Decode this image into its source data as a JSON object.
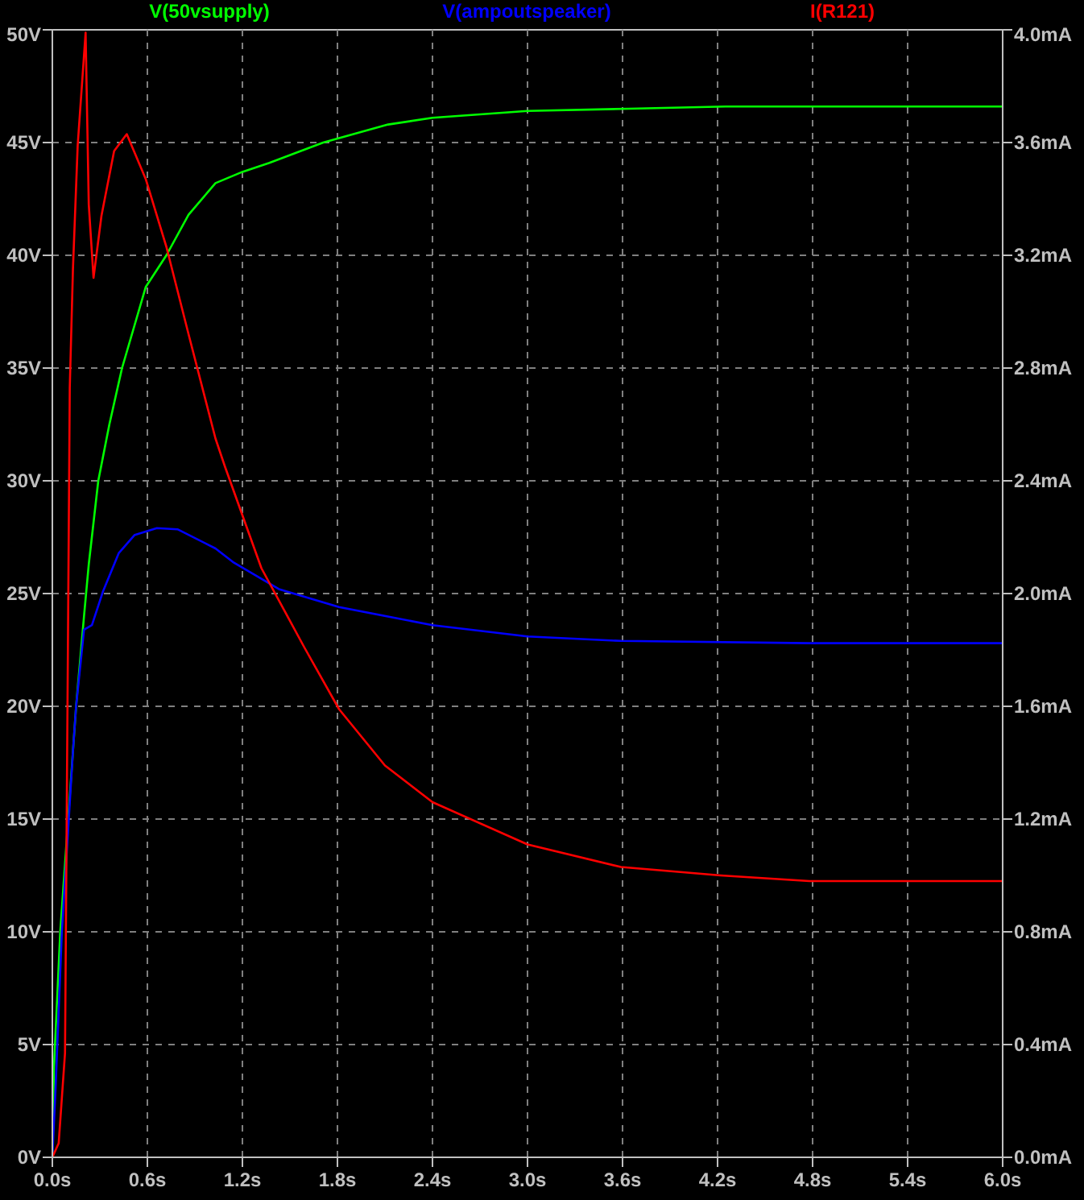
{
  "chart_data": {
    "type": "line",
    "grid": true,
    "marker": "none",
    "line_style": "solid",
    "xlim": [
      0,
      6
    ],
    "ylim": [
      0,
      50
    ],
    "y2lim": [
      0,
      4
    ],
    "xticks": [
      {
        "value": 0,
        "label": "0.0s"
      },
      {
        "value": 0.6,
        "label": "0.6s"
      },
      {
        "value": 1.2,
        "label": "1.2s"
      },
      {
        "value": 1.8,
        "label": "1.8s"
      },
      {
        "value": 2.4,
        "label": "2.4s"
      },
      {
        "value": 3.0,
        "label": "3.0s"
      },
      {
        "value": 3.6,
        "label": "3.6s"
      },
      {
        "value": 4.2,
        "label": "4.2s"
      },
      {
        "value": 4.8,
        "label": "4.8s"
      },
      {
        "value": 5.4,
        "label": "5.4s"
      },
      {
        "value": 6.0,
        "label": "6.0s"
      }
    ],
    "yticks": [
      {
        "value": 0,
        "label": "0V"
      },
      {
        "value": 5,
        "label": "5V"
      },
      {
        "value": 10,
        "label": "10V"
      },
      {
        "value": 15,
        "label": "15V"
      },
      {
        "value": 20,
        "label": "20V"
      },
      {
        "value": 25,
        "label": "25V"
      },
      {
        "value": 30,
        "label": "30V"
      },
      {
        "value": 35,
        "label": "35V"
      },
      {
        "value": 40,
        "label": "40V"
      },
      {
        "value": 45,
        "label": "45V"
      },
      {
        "value": 50,
        "label": "50V"
      }
    ],
    "y2ticks": [
      {
        "value": 0,
        "label": "0.0mA"
      },
      {
        "value": 0.4,
        "label": "0.4mA"
      },
      {
        "value": 0.8,
        "label": "0.8mA"
      },
      {
        "value": 1.2,
        "label": "1.2mA"
      },
      {
        "value": 1.6,
        "label": "1.6mA"
      },
      {
        "value": 2.0,
        "label": "2.0mA"
      },
      {
        "value": 2.4,
        "label": "2.4mA"
      },
      {
        "value": 2.8,
        "label": "2.8mA"
      },
      {
        "value": 3.2,
        "label": "3.2mA"
      },
      {
        "value": 3.6,
        "label": "3.6mA"
      },
      {
        "value": 4.0,
        "label": "4.0mA"
      }
    ],
    "series": [
      {
        "name": "V(50vsupply)",
        "color": "#00ff00",
        "x": [
          0,
          0.01,
          0.05,
          0.1,
          0.15,
          0.2,
          0.23,
          0.29,
          0.36,
          0.44,
          0.59,
          0.72,
          0.86,
          1.03,
          1.2,
          1.37,
          1.71,
          2.12,
          2.4,
          3.0,
          3.64,
          4.25,
          5.0,
          6.0
        ],
        "values": [
          0,
          4,
          10,
          15,
          20,
          24,
          26.3,
          30,
          32.5,
          35,
          38.6,
          40,
          41.8,
          43.2,
          43.7,
          44.1,
          45.0,
          45.8,
          46.1,
          46.4,
          46.5,
          46.6,
          46.6,
          46.6
        ]
      },
      {
        "name": "V(ampoutspeaker)",
        "color": "#0000ff",
        "x": [
          0,
          0.02,
          0.06,
          0.13,
          0.15,
          0.2,
          0.25,
          0.32,
          0.42,
          0.52,
          0.66,
          0.79,
          1.03,
          1.14,
          1.43,
          1.81,
          2.4,
          3.0,
          3.59,
          4.78,
          6.0
        ],
        "values": [
          0,
          3,
          10,
          18,
          20,
          23.4,
          23.6,
          25.1,
          26.8,
          27.6,
          27.9,
          27.85,
          27.0,
          26.4,
          25.2,
          24.4,
          23.6,
          23.1,
          22.9,
          22.8,
          22.8
        ]
      },
      {
        "name": "I(R121)",
        "color": "#ff0000",
        "axis": "y2",
        "x": [
          0,
          0.04,
          0.08,
          0.11,
          0.13,
          0.16,
          0.21,
          0.23,
          0.26,
          0.31,
          0.39,
          0.47,
          0.59,
          0.72,
          0.86,
          1.03,
          1.09,
          1.32,
          1.59,
          1.81,
          2.1,
          2.4,
          3.0,
          3.59,
          4.22,
          4.78,
          6.0
        ],
        "values": [
          0,
          0.05,
          0.37,
          2.73,
          3.15,
          3.59,
          3.99,
          3.38,
          3.12,
          3.34,
          3.57,
          3.63,
          3.47,
          3.23,
          2.92,
          2.55,
          2.45,
          2.09,
          1.81,
          1.59,
          1.39,
          1.26,
          1.11,
          1.03,
          1.0,
          0.98,
          0.98
        ]
      }
    ]
  }
}
